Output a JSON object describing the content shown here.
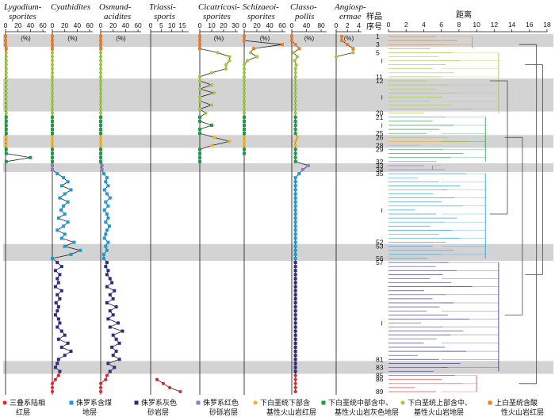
{
  "chart_data": {
    "type": "line",
    "sample_axis_label": "样品序号",
    "dendrogram_axis_label": "距离",
    "dendrogram_ticks": [
      "0",
      "2",
      "4",
      "6",
      "8",
      "10",
      "12",
      "14",
      "16",
      "18"
    ],
    "sample_numbers_shown": [
      "1",
      "3",
      "5",
      "11",
      "12",
      "20",
      "21",
      "25",
      "26",
      "28",
      "29",
      "32",
      "33",
      "34",
      "35",
      "52",
      "53",
      "56",
      "57",
      "81",
      "83",
      "85",
      "86",
      "89"
    ],
    "sample_tilde_positions": [
      7,
      16,
      23,
      44,
      72
    ],
    "highlight_bands": [
      [
        1,
        3
      ],
      [
        12,
        19
      ],
      [
        26,
        28
      ],
      [
        33,
        34
      ],
      [
        53,
        56
      ],
      [
        82,
        84
      ]
    ],
    "legend": [
      {
        "key": "tri",
        "label_l1": "三叠系陆相",
        "label_l2": "红层",
        "color": "#e8262c",
        "shape": "circle"
      },
      {
        "key": "jcoal",
        "label_l1": "侏罗系含煤",
        "label_l2": "地层",
        "color": "#1a9ad6",
        "shape": "square"
      },
      {
        "key": "jgray",
        "label_l1": "侏罗系灰色",
        "label_l2": "砂岩层",
        "color": "#2e2a86",
        "shape": "square"
      },
      {
        "key": "jred",
        "label_l1": "侏罗系红色",
        "label_l2": "砂砾岩层",
        "color": "#8f7cc0",
        "shape": "square"
      },
      {
        "key": "klow",
        "label_l1": "下白垩统下部含",
        "label_l2": "基性火山岩红层",
        "color": "#f4b21b",
        "shape": "circle"
      },
      {
        "key": "kmid",
        "label_l1": "下白垩统中部含中、",
        "label_l2": "基性火山岩灰色地层",
        "color": "#1e9a48",
        "shape": "square"
      },
      {
        "key": "kup",
        "label_l1": "下白垩统上部含中、",
        "label_l2": "基性火山岩地层",
        "color": "#9dc93b",
        "shape": "circle"
      },
      {
        "key": "kupa",
        "label_l1": "上白垩统含酸",
        "label_l2": "性火山岩红层",
        "color": "#ee7d28",
        "shape": "square"
      }
    ],
    "series": [
      {
        "name_l1": "Lygodium-",
        "name_l2": "sporites",
        "ticks": [
          "0",
          "20",
          "40",
          "60"
        ],
        "xlim": [
          0,
          65
        ],
        "pct_shown": true,
        "values": [
          0,
          0,
          0,
          1,
          1,
          1,
          1,
          1,
          1,
          1,
          1,
          1,
          1,
          1,
          1,
          1,
          1,
          1,
          1,
          1,
          1,
          1,
          1,
          1,
          1,
          1,
          1,
          1,
          1,
          1,
          40,
          1
        ]
      },
      {
        "name_l1": "Cyathidites",
        "name_l2": "",
        "ticks": [
          "0",
          "20",
          "40",
          "60"
        ],
        "xlim": [
          0,
          65
        ],
        "pct_shown": true,
        "values": [
          0,
          0,
          0,
          0,
          0,
          0,
          0,
          0,
          0,
          0,
          0,
          0,
          0,
          0,
          0,
          0,
          0,
          0,
          0,
          0,
          0,
          0,
          0,
          0,
          0,
          0,
          0,
          0,
          0,
          0,
          0,
          0,
          0,
          0,
          8,
          18,
          25,
          15,
          30,
          20,
          12,
          25,
          18,
          14,
          20,
          10,
          25,
          18,
          8,
          20,
          15,
          35,
          20,
          45,
          30,
          0,
          8,
          15,
          5,
          12,
          8,
          10,
          5,
          15,
          8,
          12,
          6,
          10,
          8,
          5,
          10,
          12,
          8,
          15,
          20,
          10,
          25,
          15,
          30,
          20,
          10,
          8,
          5,
          12,
          10,
          5,
          0,
          0,
          0
        ]
      },
      {
        "name_l1": "Osmund-",
        "name_l2": "acidites",
        "ticks": [
          "0",
          "20",
          "40",
          "60"
        ],
        "xlim": [
          0,
          65
        ],
        "pct_shown": true,
        "values": [
          0,
          0,
          0,
          0,
          0,
          0,
          0,
          0,
          0,
          0,
          0,
          0,
          0,
          0,
          0,
          0,
          0,
          0,
          0,
          0,
          0,
          0,
          0,
          0,
          0,
          0,
          0,
          0,
          0,
          0,
          0,
          0,
          2,
          2,
          5,
          10,
          8,
          12,
          6,
          10,
          15,
          8,
          12,
          6,
          10,
          12,
          8,
          14,
          10,
          8,
          6,
          12,
          8,
          10,
          5,
          5,
          10,
          8,
          12,
          10,
          15,
          18,
          10,
          22,
          15,
          20,
          10,
          25,
          15,
          20,
          12,
          28,
          15,
          35,
          20,
          25,
          30,
          18,
          25,
          20,
          30,
          12,
          22,
          15,
          10,
          8,
          0,
          0,
          0
        ]
      },
      {
        "name_l1": "Triassi-",
        "name_l2": "sporis",
        "ticks": [
          "0",
          "5",
          "10",
          "15"
        ],
        "xlim": [
          0,
          18
        ],
        "pct_shown": false,
        "values": [
          0,
          0,
          0,
          0,
          0,
          0,
          0,
          0,
          0,
          0,
          0,
          0,
          0,
          0,
          0,
          0,
          0,
          0,
          0,
          0,
          0,
          0,
          0,
          0,
          0,
          0,
          0,
          0,
          0,
          0,
          0,
          0,
          0,
          0,
          0,
          0,
          0,
          0,
          0,
          0,
          0,
          0,
          0,
          0,
          0,
          0,
          0,
          0,
          0,
          0,
          0,
          0,
          0,
          0,
          0,
          0,
          0,
          0,
          0,
          0,
          0,
          0,
          0,
          0,
          0,
          0,
          0,
          0,
          0,
          0,
          0,
          0,
          0,
          0,
          0,
          0,
          0,
          0,
          0,
          0,
          0,
          0,
          0,
          0,
          0,
          3,
          6,
          9,
          14
        ]
      },
      {
        "name_l1": "Cicatricosi-",
        "name_l2": "sporites",
        "ticks": [
          "0",
          "10",
          "20",
          "30"
        ],
        "xlim": [
          0,
          32
        ],
        "pct_shown": true,
        "values": [
          0,
          0,
          0,
          0,
          15,
          25,
          25,
          22,
          22,
          10,
          0,
          0,
          10,
          0,
          12,
          0,
          0,
          10,
          0,
          5,
          0,
          0,
          10,
          0,
          0,
          12,
          25,
          10,
          0,
          0,
          0,
          0
        ]
      },
      {
        "name_l1": "Schizaeoi-",
        "name_l2": "sporites",
        "ticks": [
          "0",
          "20",
          "40",
          "60"
        ],
        "xlim": [
          0,
          65
        ],
        "pct_shown": true,
        "values": [
          0,
          0,
          60,
          15,
          10,
          20,
          5,
          0,
          0,
          0,
          0,
          0,
          0,
          0,
          0,
          0,
          0,
          0,
          0,
          0,
          0,
          0,
          0,
          0,
          0,
          0,
          0,
          0,
          0,
          0
        ]
      },
      {
        "name_l1": "Classo-",
        "name_l2": "pollis",
        "ticks": [
          "0",
          "40",
          "80"
        ],
        "xlim": [
          0,
          95
        ],
        "pct_shown": true,
        "values": [
          0,
          0,
          10,
          20,
          5,
          15,
          8,
          12,
          10,
          10,
          10,
          10,
          10,
          10,
          10,
          10,
          10,
          10,
          10,
          10,
          10,
          10,
          10,
          10,
          10,
          15,
          10,
          10,
          10,
          10,
          10,
          10,
          45,
          30,
          20,
          10,
          10,
          10,
          10,
          10,
          10,
          10,
          10,
          10,
          10,
          10,
          10,
          10,
          10,
          10,
          10,
          10,
          10,
          10,
          10,
          10,
          10,
          10,
          10,
          10,
          10,
          10,
          10,
          10,
          10,
          10,
          10,
          10,
          10,
          10,
          10,
          10,
          10,
          10,
          10,
          10,
          10,
          10,
          10,
          10,
          10,
          10,
          10,
          10,
          10,
          10,
          10,
          10,
          10
        ]
      },
      {
        "name_l1": "Angiosp-",
        "name_l2": "ermae",
        "ticks": [
          "0",
          "2",
          "4"
        ],
        "xlim": [
          0,
          4.5
        ],
        "pct_shown": true,
        "values": [
          1,
          1,
          2,
          3,
          3,
          0
        ]
      }
    ]
  }
}
